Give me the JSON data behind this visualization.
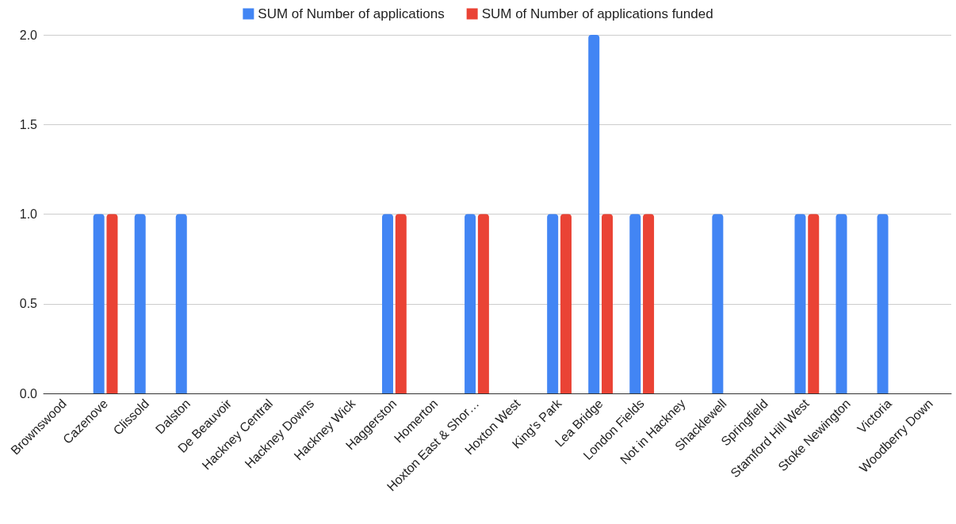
{
  "chart_data": {
    "type": "bar",
    "categories": [
      "Brownswood",
      "Cazenove",
      "Clissold",
      "Dalston",
      "De Beauvoir",
      "Hackney Central",
      "Hackney Downs",
      "Hackney Wick",
      "Haggerston",
      "Homerton",
      "Hoxton East & Shor…",
      "Hoxton West",
      "King's Park",
      "Lea Bridge",
      "London Fields",
      "Not in Hackney",
      "Shacklewell",
      "Springfield",
      "Stamford Hill West",
      "Stoke Newington",
      "Victoria",
      "Woodberry Down"
    ],
    "series": [
      {
        "name": "SUM of Number of applications",
        "color": "#4285f4",
        "values": [
          0,
          1,
          1,
          1,
          0,
          0,
          0,
          0,
          1,
          0,
          1,
          0,
          1,
          2,
          1,
          0,
          1,
          0,
          1,
          1,
          1,
          0
        ]
      },
      {
        "name": "SUM of Number of applications funded",
        "color": "#ea4335",
        "values": [
          0,
          1,
          0,
          0,
          0,
          0,
          0,
          0,
          1,
          0,
          1,
          0,
          1,
          1,
          1,
          0,
          0,
          0,
          1,
          0,
          0,
          0
        ]
      }
    ],
    "ylim": [
      0,
      2
    ],
    "yticks": [
      {
        "value": 0,
        "label": "0.0"
      },
      {
        "value": 0.5,
        "label": "0.5"
      },
      {
        "value": 1,
        "label": "1.0"
      },
      {
        "value": 1.5,
        "label": "1.5"
      },
      {
        "value": 2,
        "label": "2.0"
      }
    ],
    "grid": "y",
    "legend": "top"
  }
}
